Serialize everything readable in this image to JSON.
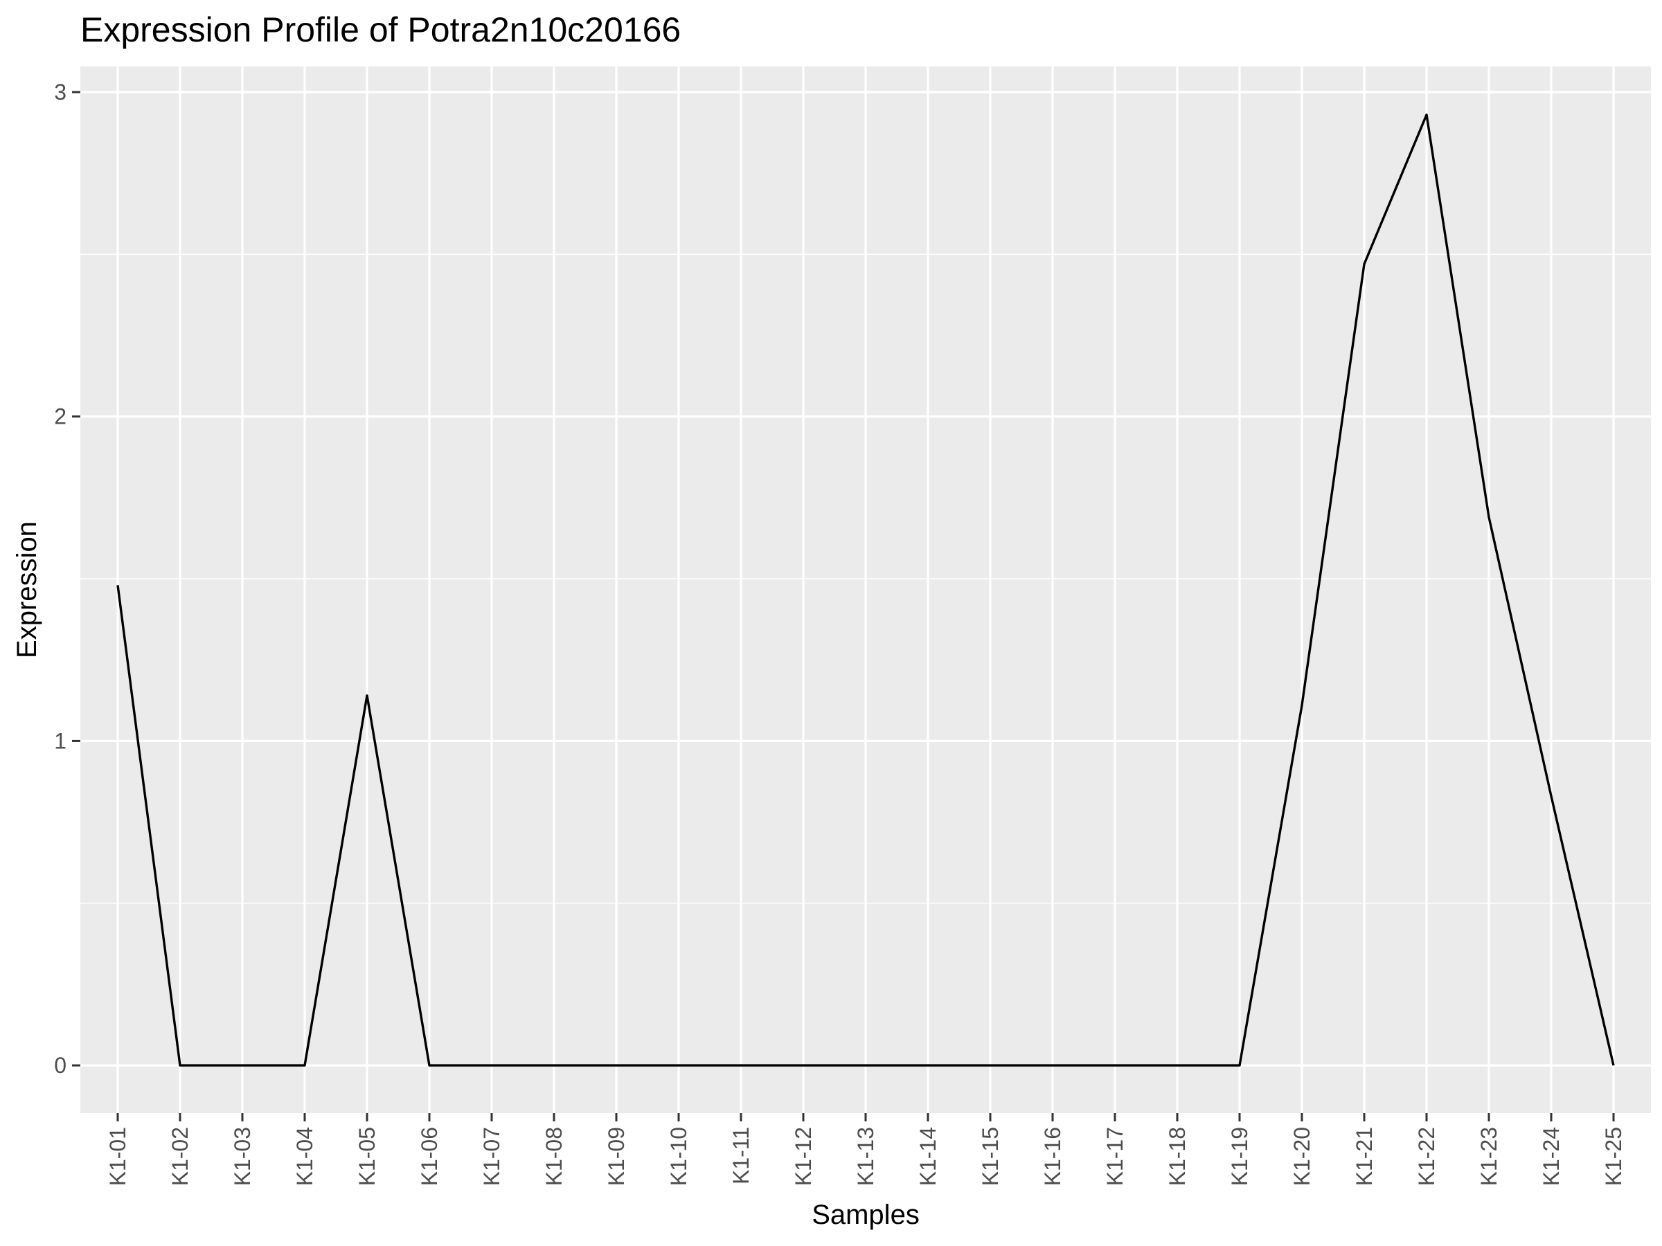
{
  "chart_data": {
    "type": "line",
    "title": "Expression Profile of Potra2n10c20166",
    "xlabel": "Samples",
    "ylabel": "Expression",
    "categories": [
      "K1-01",
      "K1-02",
      "K1-03",
      "K1-04",
      "K1-05",
      "K1-06",
      "K1-07",
      "K1-08",
      "K1-09",
      "K1-10",
      "K1-11",
      "K1-12",
      "K1-13",
      "K1-14",
      "K1-15",
      "K1-16",
      "K1-17",
      "K1-18",
      "K1-19",
      "K1-20",
      "K1-21",
      "K1-22",
      "K1-23",
      "K1-24",
      "K1-25"
    ],
    "series": [
      {
        "values": [
          1.48,
          0,
          0,
          0,
          1.14,
          0,
          0,
          0,
          0,
          0,
          0,
          0,
          0,
          0,
          0,
          0,
          0,
          0,
          0,
          1.11,
          2.47,
          2.93,
          1.69,
          0.83,
          0
        ]
      }
    ],
    "yticks": [
      0,
      1,
      2,
      3
    ],
    "ylim": [
      -0.147,
      3.079
    ],
    "grid": true,
    "legend": "none",
    "colors": {
      "panel": "#ebebeb",
      "grid": "#ffffff",
      "line": "#000000",
      "tick_text": "#4d4d4d",
      "tick_mark": "#333333"
    }
  }
}
